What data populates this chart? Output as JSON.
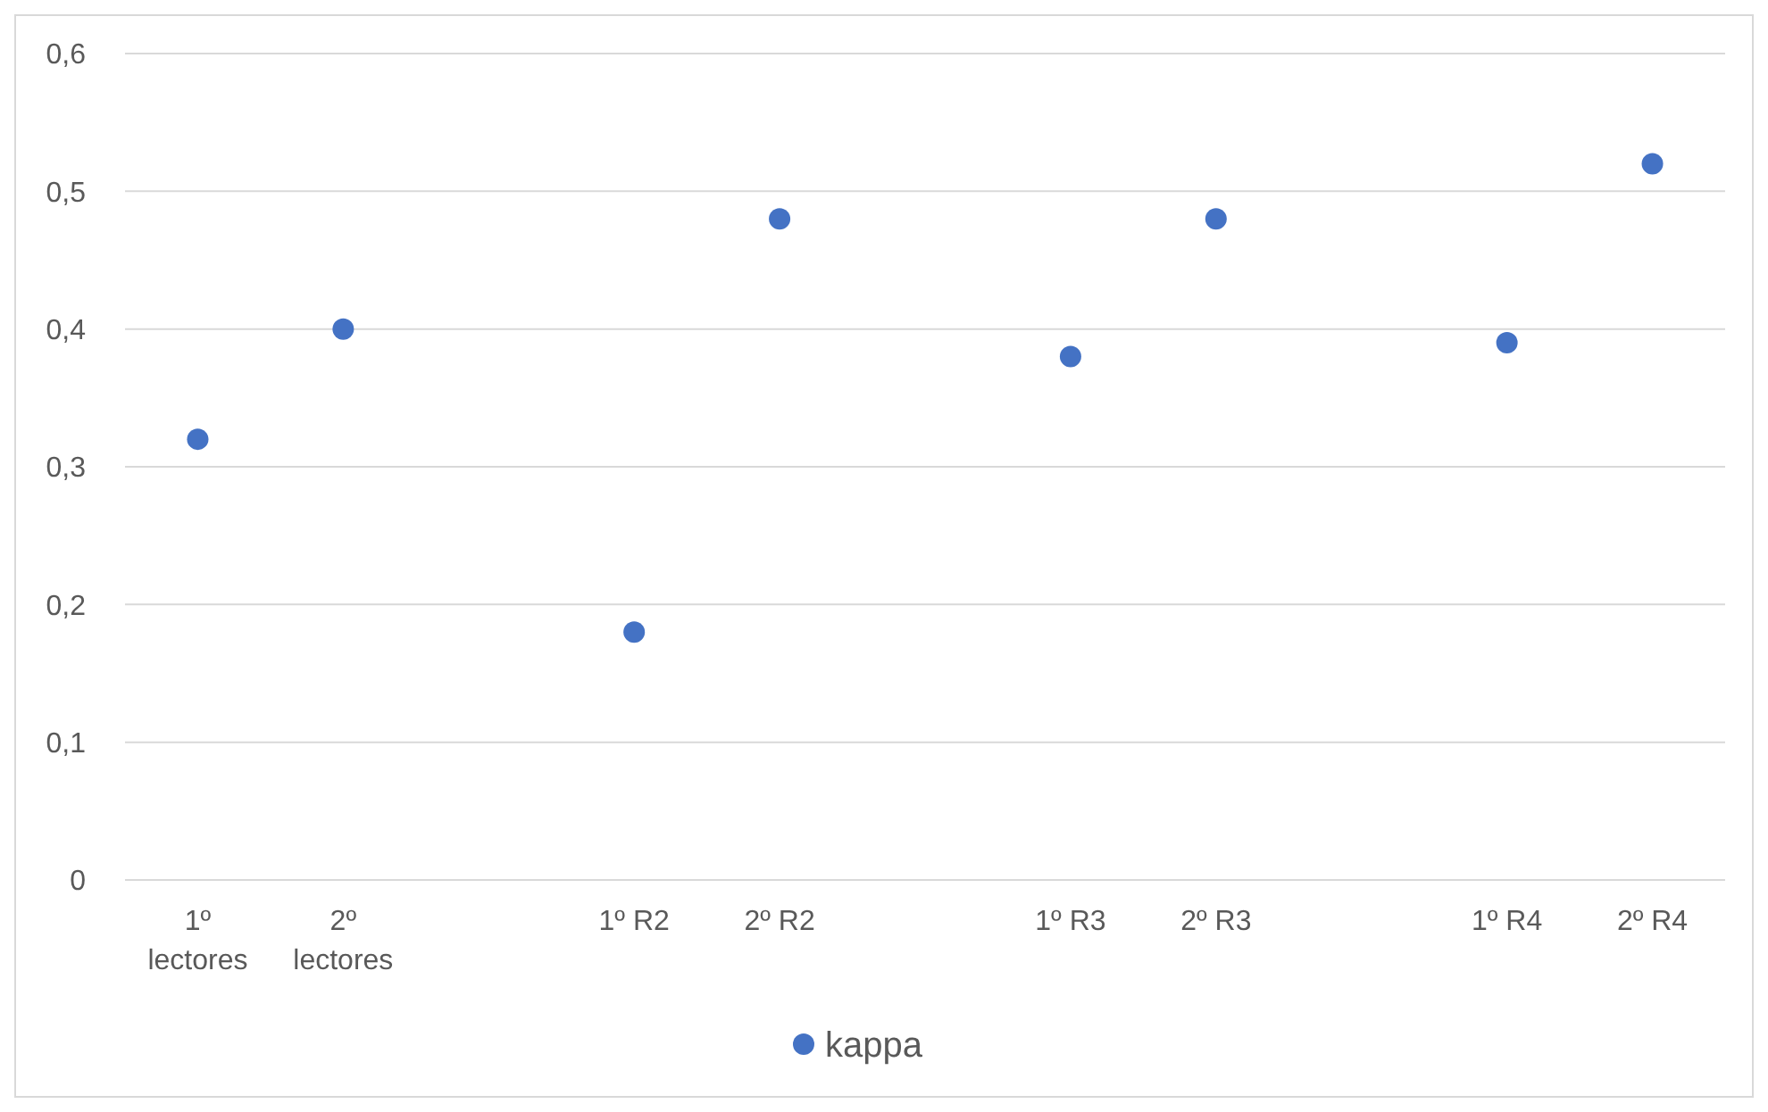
{
  "chart_data": {
    "type": "scatter",
    "categories": [
      "1º lectores",
      "2º lectores",
      null,
      "1º R2",
      "2º R2",
      null,
      "1º R3",
      "2º R3",
      null,
      "1º R4",
      "2º R4"
    ],
    "series": [
      {
        "name": "kappa",
        "color": "#4472c4",
        "values": [
          0.32,
          0.4,
          null,
          0.18,
          0.48,
          null,
          0.38,
          0.48,
          null,
          0.39,
          0.52
        ]
      }
    ],
    "ylim": [
      0,
      0.6
    ],
    "yticks": [
      {
        "value": 0,
        "label": "0"
      },
      {
        "value": 0.1,
        "label": "0,1"
      },
      {
        "value": 0.2,
        "label": "0,2"
      },
      {
        "value": 0.3,
        "label": "0,3"
      },
      {
        "value": 0.4,
        "label": "0,4"
      },
      {
        "value": 0.5,
        "label": "0,5"
      },
      {
        "value": 0.6,
        "label": "0,6"
      }
    ],
    "grid": "y",
    "legend": "bottom",
    "marker": "circle"
  }
}
